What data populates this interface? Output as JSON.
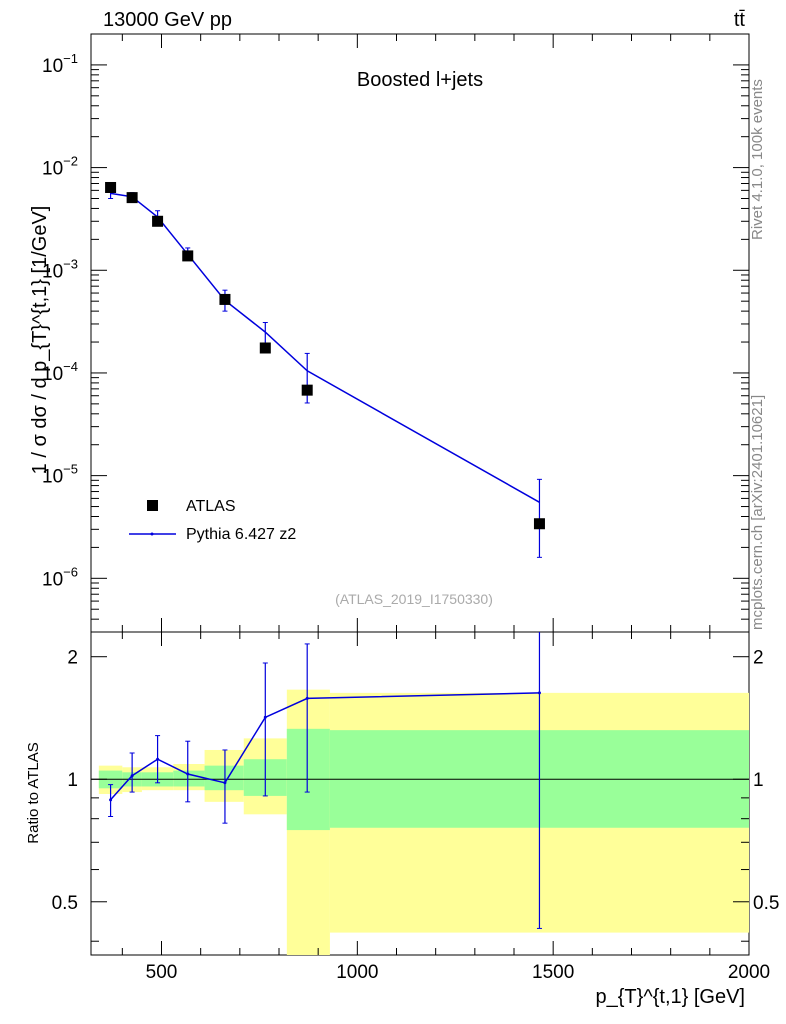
{
  "header": {
    "left": "13000 GeV pp",
    "right": "tt̄"
  },
  "title": "Boosted l+jets",
  "analysis_tag": "(ATLAS_2019_I1750330)",
  "side_text": {
    "rivet": "Rivet 4.1.0,  100k events",
    "mcplots": "mcplots.cern.ch [arXiv:2401.10621]"
  },
  "legend": {
    "data": "ATLAS",
    "mc": "Pythia 6.427 z2"
  },
  "colors": {
    "mc": "#0000dd",
    "band_inner": "#99ff99",
    "band_outer": "#ffff99",
    "data": "#000000"
  },
  "chart_data": [
    {
      "type": "scatter",
      "title": "Boosted l+jets",
      "xlabel": "p_{T}^{t,1} [GeV]",
      "ylabel": "1 / σ dσ / d p_{T}^{t,1} [1/GeV]",
      "yscale": "log",
      "xlim": [
        320,
        2000
      ],
      "ylim": [
        3e-07,
        0.2
      ],
      "ytick_labels": [
        "10^-6",
        "10^-5",
        "10^-4",
        "10^-3",
        "10^-2",
        "10^-1"
      ],
      "series": [
        {
          "name": "ATLAS",
          "x": [
            370,
            425,
            490,
            567,
            662,
            765,
            872,
            1465
          ],
          "y": [
            0.0064,
            0.0051,
            0.003,
            0.00138,
            0.00052,
            0.000175,
            6.8e-05,
            3.4e-06
          ]
        },
        {
          "name": "Pythia 6.427 z2",
          "x": [
            370,
            425,
            490,
            567,
            662,
            765,
            872,
            1465
          ],
          "y": [
            0.0056,
            0.0052,
            0.0033,
            0.00143,
            0.00051,
            0.00025,
            0.000105,
            5.5e-06
          ],
          "err_lo": [
            0.005,
            0.0048,
            0.0029,
            0.00125,
            0.0004,
            0.00018,
            5.1e-05,
            1.6e-06
          ],
          "err_hi": [
            0.0064,
            0.0057,
            0.0038,
            0.00165,
            0.00064,
            0.00031,
            0.000155,
            9.2e-06
          ]
        }
      ]
    },
    {
      "type": "line",
      "ylabel": "Ratio to ATLAS",
      "xlabel": "p_{T}^{t,1} [GeV]",
      "yscale": "log",
      "xlim": [
        320,
        2000
      ],
      "ylim": [
        0.37,
        2.3
      ],
      "x_ticks": [
        500,
        1000,
        1500,
        2000
      ],
      "y_ticks": [
        0.5,
        1,
        2
      ],
      "reference": 1,
      "bins": [
        [
          340,
          400
        ],
        [
          400,
          450
        ],
        [
          450,
          530
        ],
        [
          530,
          610
        ],
        [
          610,
          710
        ],
        [
          710,
          820
        ],
        [
          820,
          930
        ],
        [
          930,
          2000
        ]
      ],
      "band_inner": [
        [
          0.95,
          1.05
        ],
        [
          0.96,
          1.04
        ],
        [
          0.96,
          1.04
        ],
        [
          0.96,
          1.05
        ],
        [
          0.94,
          1.08
        ],
        [
          0.91,
          1.12
        ],
        [
          0.75,
          1.33
        ],
        [
          0.76,
          1.32
        ]
      ],
      "band_outer": [
        [
          0.92,
          1.08
        ],
        [
          0.93,
          1.07
        ],
        [
          0.94,
          1.07
        ],
        [
          0.94,
          1.09
        ],
        [
          0.88,
          1.18
        ],
        [
          0.82,
          1.26
        ],
        [
          0.36,
          1.66
        ],
        [
          0.42,
          1.63
        ]
      ],
      "series": [
        {
          "name": "Pythia 6.427 z2",
          "x": [
            370,
            425,
            490,
            567,
            662,
            765,
            872,
            1465
          ],
          "y": [
            0.89,
            1.02,
            1.12,
            1.03,
            0.98,
            1.42,
            1.58,
            1.63
          ],
          "err_lo": [
            0.81,
            0.93,
            0.98,
            0.88,
            0.78,
            0.91,
            0.93,
            0.43
          ],
          "err_hi": [
            0.97,
            1.16,
            1.28,
            1.24,
            1.18,
            1.93,
            2.15,
            2.35
          ]
        }
      ]
    }
  ]
}
